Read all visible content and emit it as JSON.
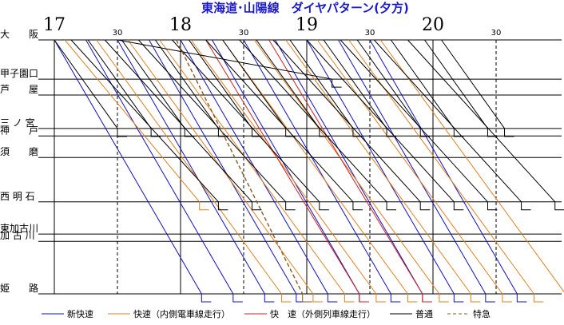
{
  "chart_data": {
    "type": "line",
    "title": "東海道･山陽線　ダイヤパターン(夕方)",
    "hours": [
      "17",
      "18",
      "19",
      "20"
    ],
    "half_label": "30",
    "stations": [
      {
        "name": "大　　阪",
        "km": 0
      },
      {
        "name": "甲子園口",
        "km": 13.5
      },
      {
        "name": "芦　　屋",
        "km": 19.0
      },
      {
        "name": "三 ノ 宮",
        "km": 30.5
      },
      {
        "name": "神　　戸",
        "km": 33.1
      },
      {
        "name": "須　　磨",
        "km": 40.5
      },
      {
        "name": "西 明 石",
        "km": 55.8
      },
      {
        "name": "東加古川",
        "km": 66.9
      },
      {
        "name": "加 古 川",
        "km": 69.4
      },
      {
        "name": "姫　　路",
        "km": 87.5
      }
    ],
    "series": [
      {
        "name": "新快速",
        "color": "#1010c0",
        "style": "solid",
        "trips": [
          {
            "dep": "17:00",
            "end": "姫路",
            "arr": "18:10"
          },
          {
            "dep": "17:15",
            "end": "姫路",
            "arr": "18:25"
          },
          {
            "dep": "17:30",
            "end": "姫路",
            "arr": "18:40"
          },
          {
            "dep": "17:45",
            "end": "姫路",
            "arr": "18:55"
          },
          {
            "dep": "18:00",
            "end": "姫路",
            "arr": "19:10"
          },
          {
            "dep": "18:15",
            "end": "姫路",
            "arr": "19:25"
          },
          {
            "dep": "18:30",
            "end": "姫路",
            "arr": "19:40"
          },
          {
            "dep": "18:45",
            "end": "姫路",
            "arr": "19:55"
          },
          {
            "dep": "19:00",
            "end": "姫路",
            "arr": "20:10"
          },
          {
            "dep": "19:15",
            "end": "姫路",
            "arr": "20:25"
          },
          {
            "dep": "19:30",
            "end": "姫路",
            "arr": "20:40"
          }
        ]
      },
      {
        "name": "快速（内側電車線走行）",
        "color": "#e08020",
        "style": "solid",
        "trips": [
          {
            "dep": "17:05",
            "end": "西明石",
            "arr": "18:09"
          },
          {
            "dep": "17:20",
            "end": "姫路",
            "arr": "18:48"
          },
          {
            "dep": "17:35",
            "end": "姫路",
            "arr": "19:03"
          },
          {
            "dep": "17:50",
            "end": "姫路",
            "arr": "19:18"
          },
          {
            "dep": "18:05",
            "end": "姫路",
            "arr": "19:33"
          },
          {
            "dep": "18:20",
            "end": "姫路",
            "arr": "19:48"
          },
          {
            "dep": "18:35",
            "end": "姫路",
            "arr": "20:03"
          },
          {
            "dep": "18:50",
            "end": "姫路",
            "arr": "20:18"
          },
          {
            "dep": "19:05",
            "end": "姫路",
            "arr": "20:33"
          },
          {
            "dep": "19:20",
            "end": "姫路",
            "arr": "20:48"
          },
          {
            "dep": "19:35",
            "end": "姫路",
            "arr": "21:03"
          }
        ]
      },
      {
        "name": "快　速（外側列車線走行）",
        "color": "#d02020",
        "style": "solid",
        "trips": [
          {
            "dep": "18:12",
            "end": "姫路",
            "arr": "19:25"
          },
          {
            "dep": "18:42",
            "end": "姫路",
            "arr": "19:55"
          }
        ]
      },
      {
        "name": "普通",
        "color": "#000000",
        "style": "solid",
        "trips": [
          {
            "dep": "17:00",
            "end": "三ノ宮",
            "arr": "17:30"
          },
          {
            "dep": "17:08",
            "end": "西明石",
            "arr": "18:18"
          },
          {
            "dep": "17:16",
            "end": "三ノ宮",
            "arr": "17:46"
          },
          {
            "dep": "17:24",
            "end": "西明石",
            "arr": "18:34"
          },
          {
            "dep": "17:32",
            "end": "三ノ宮",
            "arr": "18:02"
          },
          {
            "dep": "17:40",
            "end": "西明石",
            "arr": "18:50"
          },
          {
            "dep": "17:48",
            "end": "三ノ宮",
            "arr": "18:18"
          },
          {
            "dep": "17:56",
            "end": "西明石",
            "arr": "19:06"
          },
          {
            "dep": "18:04",
            "end": "三ノ宮",
            "arr": "18:34"
          },
          {
            "dep": "18:12",
            "end": "西明石",
            "arr": "19:22"
          },
          {
            "dep": "18:20",
            "end": "三ノ宮",
            "arr": "18:50"
          },
          {
            "dep": "18:28",
            "end": "西明石",
            "arr": "19:38"
          },
          {
            "dep": "18:36",
            "end": "三ノ宮",
            "arr": "19:06"
          },
          {
            "dep": "18:44",
            "end": "西明石",
            "arr": "19:54"
          },
          {
            "dep": "18:52",
            "end": "三ノ宮",
            "arr": "19:22"
          },
          {
            "dep": "19:00",
            "end": "西明石",
            "arr": "20:10"
          },
          {
            "dep": "19:08",
            "end": "三ノ宮",
            "arr": "19:38"
          },
          {
            "dep": "19:16",
            "end": "西明石",
            "arr": "20:26"
          },
          {
            "dep": "19:24",
            "end": "三ノ宮",
            "arr": "19:54"
          },
          {
            "dep": "19:32",
            "end": "西明石",
            "arr": "20:42"
          },
          {
            "dep": "19:40",
            "end": "三ノ宮",
            "arr": "20:10"
          },
          {
            "dep": "19:48",
            "end": "西明石",
            "arr": "20:58"
          },
          {
            "dep": "19:56",
            "end": "三ノ宮",
            "arr": "20:26"
          },
          {
            "dep": "20:04",
            "end": "三ノ宮",
            "arr": "20:34"
          },
          {
            "dep": "17:30",
            "end": "甲子園口",
            "arr": "19:12"
          }
        ]
      },
      {
        "name": "特急",
        "color": "#8a5a2a",
        "style": "dashed",
        "trips": [
          {
            "dep": "17:58",
            "end": "姫路",
            "arr": "18:58"
          }
        ]
      }
    ],
    "xlim": [
      "17:00",
      "21:05"
    ],
    "grid": true,
    "legend": "bottom"
  }
}
